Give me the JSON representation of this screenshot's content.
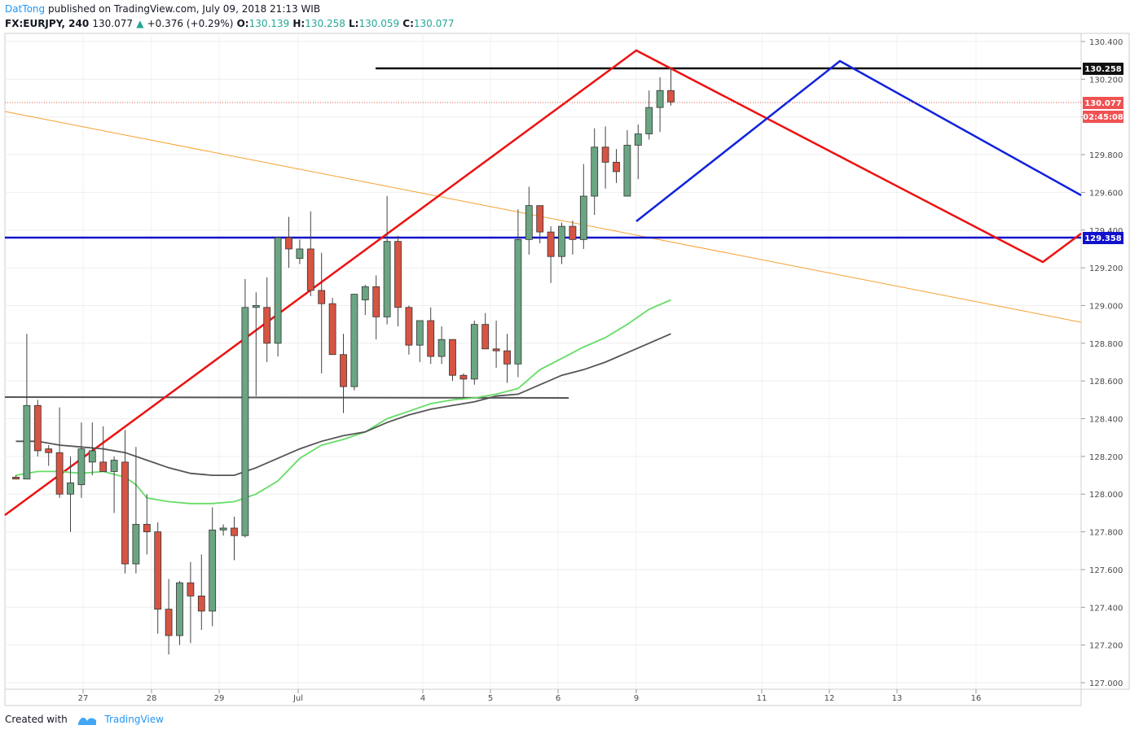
{
  "header": {
    "author": "DatTong",
    "published_text": "published on TradingView.com, July 09, 2018 21:13 WIB",
    "symbol": "FX:EURJPY, 240",
    "last": "130.077",
    "change": "+0.376 (+0.29%)",
    "o_label": "O:",
    "o_val": "130.139",
    "h_label": "H:",
    "h_val": "130.258",
    "l_label": "L:",
    "l_val": "130.059",
    "c_label": "C:",
    "c_val": "130.077"
  },
  "footer": {
    "created_with": "Created with",
    "brand": "TradingView"
  },
  "colors": {
    "up": "#6ba583",
    "down": "#d75442",
    "ma_green": "#66dd66",
    "ma_dark": "#555555",
    "red_line": "#ee1111",
    "blue_line": "#1122dd",
    "orange_line": "#f7a130",
    "price_tag": "#f05252",
    "blue_tag": "#1111cc"
  },
  "chart_data": {
    "type": "candlestick",
    "title": "FX:EURJPY, 240",
    "ylim": [
      126.96,
      130.45
    ],
    "y_ticks": [
      "130.400",
      "130.200",
      "130.000",
      "129.800",
      "129.600",
      "129.400",
      "129.200",
      "129.000",
      "128.800",
      "128.600",
      "128.400",
      "128.200",
      "128.000",
      "127.800",
      "127.600",
      "127.400",
      "127.200",
      "127.000"
    ],
    "x_ticks": [
      "27",
      "28",
      "29",
      "Jul",
      "4",
      "5",
      "6",
      "9",
      "11",
      "12",
      "13",
      "16"
    ],
    "price_tags": {
      "high_line": "130.258",
      "last": "130.077",
      "countdown": "02:45:08",
      "support": "129.358"
    },
    "candles": [
      {
        "o": 128.09,
        "h": 128.1,
        "l": 128.08,
        "c": 128.08
      },
      {
        "o": 128.08,
        "h": 128.85,
        "l": 128.08,
        "c": 128.47
      },
      {
        "o": 128.47,
        "h": 128.5,
        "l": 128.2,
        "c": 128.23
      },
      {
        "o": 128.24,
        "h": 128.26,
        "l": 128.15,
        "c": 128.22
      },
      {
        "o": 128.22,
        "h": 128.46,
        "l": 127.98,
        "c": 128.0
      },
      {
        "o": 128.0,
        "h": 128.2,
        "l": 127.8,
        "c": 128.06
      },
      {
        "o": 128.05,
        "h": 128.38,
        "l": 127.98,
        "c": 128.24
      },
      {
        "o": 128.17,
        "h": 128.38,
        "l": 128.1,
        "c": 128.23
      },
      {
        "o": 128.17,
        "h": 128.36,
        "l": 128.12,
        "c": 128.12
      },
      {
        "o": 128.12,
        "h": 128.2,
        "l": 127.9,
        "c": 128.18
      },
      {
        "o": 128.17,
        "h": 128.34,
        "l": 127.58,
        "c": 127.63
      },
      {
        "o": 127.63,
        "h": 128.25,
        "l": 127.58,
        "c": 127.84
      },
      {
        "o": 127.84,
        "h": 128.0,
        "l": 127.68,
        "c": 127.8
      },
      {
        "o": 127.8,
        "h": 127.85,
        "l": 127.26,
        "c": 127.39
      },
      {
        "o": 127.39,
        "h": 127.55,
        "l": 127.15,
        "c": 127.25
      },
      {
        "o": 127.25,
        "h": 127.54,
        "l": 127.2,
        "c": 127.53
      },
      {
        "o": 127.53,
        "h": 127.64,
        "l": 127.21,
        "c": 127.46
      },
      {
        "o": 127.46,
        "h": 127.68,
        "l": 127.28,
        "c": 127.38
      },
      {
        "o": 127.38,
        "h": 127.93,
        "l": 127.3,
        "c": 127.81
      },
      {
        "o": 127.81,
        "h": 127.84,
        "l": 127.78,
        "c": 127.82
      },
      {
        "o": 127.82,
        "h": 127.88,
        "l": 127.65,
        "c": 127.78
      },
      {
        "o": 127.78,
        "h": 129.14,
        "l": 127.77,
        "c": 128.99
      },
      {
        "o": 128.99,
        "h": 129.07,
        "l": 128.52,
        "c": 129.0
      },
      {
        "o": 128.99,
        "h": 129.15,
        "l": 128.7,
        "c": 128.8
      },
      {
        "o": 128.8,
        "h": 129.36,
        "l": 128.73,
        "c": 129.36
      },
      {
        "o": 129.36,
        "h": 129.47,
        "l": 129.2,
        "c": 129.3
      },
      {
        "o": 129.25,
        "h": 129.35,
        "l": 129.22,
        "c": 129.3
      },
      {
        "o": 129.3,
        "h": 129.5,
        "l": 129.05,
        "c": 129.08
      },
      {
        "o": 129.08,
        "h": 129.28,
        "l": 128.64,
        "c": 129.01
      },
      {
        "o": 129.01,
        "h": 129.04,
        "l": 128.74,
        "c": 128.74
      },
      {
        "o": 128.74,
        "h": 128.85,
        "l": 128.43,
        "c": 128.57
      },
      {
        "o": 128.57,
        "h": 129.06,
        "l": 128.55,
        "c": 129.06
      },
      {
        "o": 129.03,
        "h": 129.11,
        "l": 128.95,
        "c": 129.1
      },
      {
        "o": 129.1,
        "h": 129.16,
        "l": 128.82,
        "c": 128.94
      },
      {
        "o": 128.94,
        "h": 129.58,
        "l": 128.9,
        "c": 129.34
      },
      {
        "o": 129.34,
        "h": 129.37,
        "l": 128.89,
        "c": 128.99
      },
      {
        "o": 128.99,
        "h": 129.0,
        "l": 128.74,
        "c": 128.79
      },
      {
        "o": 128.79,
        "h": 128.92,
        "l": 128.7,
        "c": 128.92
      },
      {
        "o": 128.92,
        "h": 128.99,
        "l": 128.69,
        "c": 128.73
      },
      {
        "o": 128.73,
        "h": 128.89,
        "l": 128.69,
        "c": 128.82
      },
      {
        "o": 128.82,
        "h": 128.82,
        "l": 128.6,
        "c": 128.63
      },
      {
        "o": 128.63,
        "h": 128.64,
        "l": 128.51,
        "c": 128.61
      },
      {
        "o": 128.61,
        "h": 128.92,
        "l": 128.58,
        "c": 128.9
      },
      {
        "o": 128.9,
        "h": 128.96,
        "l": 128.8,
        "c": 128.77
      },
      {
        "o": 128.77,
        "h": 128.92,
        "l": 128.67,
        "c": 128.76
      },
      {
        "o": 128.76,
        "h": 128.85,
        "l": 128.59,
        "c": 128.69
      },
      {
        "o": 128.69,
        "h": 129.51,
        "l": 128.62,
        "c": 129.35
      },
      {
        "o": 129.35,
        "h": 129.63,
        "l": 129.27,
        "c": 129.53
      },
      {
        "o": 129.53,
        "h": 129.53,
        "l": 129.33,
        "c": 129.39
      },
      {
        "o": 129.39,
        "h": 129.42,
        "l": 129.12,
        "c": 129.26
      },
      {
        "o": 129.26,
        "h": 129.44,
        "l": 129.22,
        "c": 129.42
      },
      {
        "o": 129.42,
        "h": 129.45,
        "l": 129.27,
        "c": 129.35
      },
      {
        "o": 129.35,
        "h": 129.75,
        "l": 129.3,
        "c": 129.58
      },
      {
        "o": 129.58,
        "h": 129.94,
        "l": 129.48,
        "c": 129.84
      },
      {
        "o": 129.84,
        "h": 129.95,
        "l": 129.62,
        "c": 129.76
      },
      {
        "o": 129.76,
        "h": 129.83,
        "l": 129.65,
        "c": 129.71
      },
      {
        "o": 129.58,
        "h": 129.93,
        "l": 129.58,
        "c": 129.85
      },
      {
        "o": 129.85,
        "h": 129.96,
        "l": 129.67,
        "c": 129.91
      },
      {
        "o": 129.91,
        "h": 130.14,
        "l": 129.88,
        "c": 130.05
      },
      {
        "o": 130.05,
        "h": 130.21,
        "l": 129.92,
        "c": 130.14
      },
      {
        "o": 130.14,
        "h": 130.26,
        "l": 130.06,
        "c": 130.08
      }
    ],
    "ma_green": [
      [
        0,
        128.1
      ],
      [
        2,
        128.12
      ],
      [
        4,
        128.12
      ],
      [
        6,
        128.11
      ],
      [
        8,
        128.12
      ],
      [
        10,
        128.09
      ],
      [
        11,
        128.05
      ],
      [
        12,
        127.98
      ],
      [
        14,
        127.96
      ],
      [
        16,
        127.95
      ],
      [
        18,
        127.95
      ],
      [
        20,
        127.96
      ],
      [
        22,
        128.0
      ],
      [
        24,
        128.07
      ],
      [
        26,
        128.19
      ],
      [
        28,
        128.26
      ],
      [
        30,
        128.29
      ],
      [
        32,
        128.33
      ],
      [
        34,
        128.4
      ],
      [
        36,
        128.44
      ],
      [
        38,
        128.48
      ],
      [
        40,
        128.5
      ],
      [
        42,
        128.51
      ],
      [
        44,
        128.53
      ],
      [
        46,
        128.56
      ],
      [
        48,
        128.66
      ],
      [
        50,
        128.72
      ],
      [
        52,
        128.78
      ],
      [
        54,
        128.83
      ],
      [
        56,
        128.9
      ],
      [
        58,
        128.98
      ],
      [
        60,
        129.03
      ]
    ],
    "ma_dark": [
      [
        0,
        128.28
      ],
      [
        2,
        128.28
      ],
      [
        4,
        128.26
      ],
      [
        6,
        128.25
      ],
      [
        8,
        128.24
      ],
      [
        10,
        128.22
      ],
      [
        12,
        128.18
      ],
      [
        14,
        128.14
      ],
      [
        16,
        128.11
      ],
      [
        18,
        128.1
      ],
      [
        20,
        128.1
      ],
      [
        22,
        128.14
      ],
      [
        24,
        128.19
      ],
      [
        26,
        128.24
      ],
      [
        28,
        128.28
      ],
      [
        30,
        128.31
      ],
      [
        32,
        128.33
      ],
      [
        34,
        128.38
      ],
      [
        36,
        128.42
      ],
      [
        38,
        128.45
      ],
      [
        40,
        128.47
      ],
      [
        42,
        128.49
      ],
      [
        44,
        128.52
      ],
      [
        46,
        128.53
      ],
      [
        48,
        128.58
      ],
      [
        50,
        128.63
      ],
      [
        52,
        128.66
      ],
      [
        54,
        128.7
      ],
      [
        56,
        128.75
      ],
      [
        58,
        128.8
      ],
      [
        60,
        128.85
      ]
    ]
  }
}
